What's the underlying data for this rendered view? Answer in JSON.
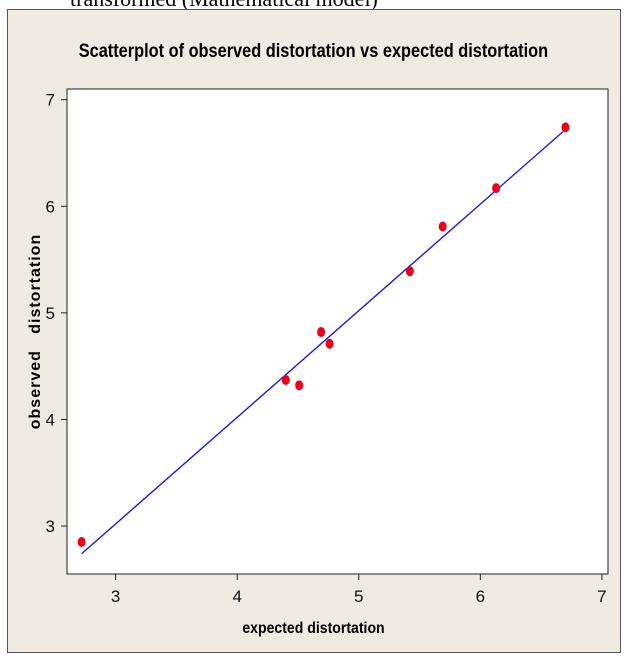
{
  "page": {
    "top_text": "transformed (Mathematical model)"
  },
  "chart_data": {
    "type": "scatter",
    "title": "Scatterplot of observed  distortation vs expected distortation",
    "xlabel": "expected distortation",
    "ylabel": "observed   distortation",
    "xlim": [
      2.6,
      7.05
    ],
    "ylim": [
      2.55,
      7.1
    ],
    "xticks": [
      3,
      4,
      5,
      6,
      7
    ],
    "yticks": [
      3,
      4,
      5,
      6,
      7
    ],
    "xtick_labels": [
      "3",
      "4",
      "5",
      "6",
      "7"
    ],
    "ytick_labels": [
      "3",
      "4",
      "5",
      "6",
      "7"
    ],
    "grid": false,
    "points": [
      {
        "x": 2.72,
        "y": 2.85
      },
      {
        "x": 4.4,
        "y": 4.37
      },
      {
        "x": 4.51,
        "y": 4.32
      },
      {
        "x": 4.69,
        "y": 4.82
      },
      {
        "x": 4.76,
        "y": 4.71
      },
      {
        "x": 5.42,
        "y": 5.39
      },
      {
        "x": 5.69,
        "y": 5.81
      },
      {
        "x": 6.13,
        "y": 6.17
      },
      {
        "x": 6.7,
        "y": 6.74
      }
    ],
    "fit_line": {
      "x": [
        2.72,
        6.68
      ],
      "y": [
        2.74,
        6.7
      ]
    },
    "colors": {
      "points": "#e8001c",
      "line": "#1a1adb",
      "background": "#efebe3",
      "plot_area": "#ffffff"
    }
  }
}
